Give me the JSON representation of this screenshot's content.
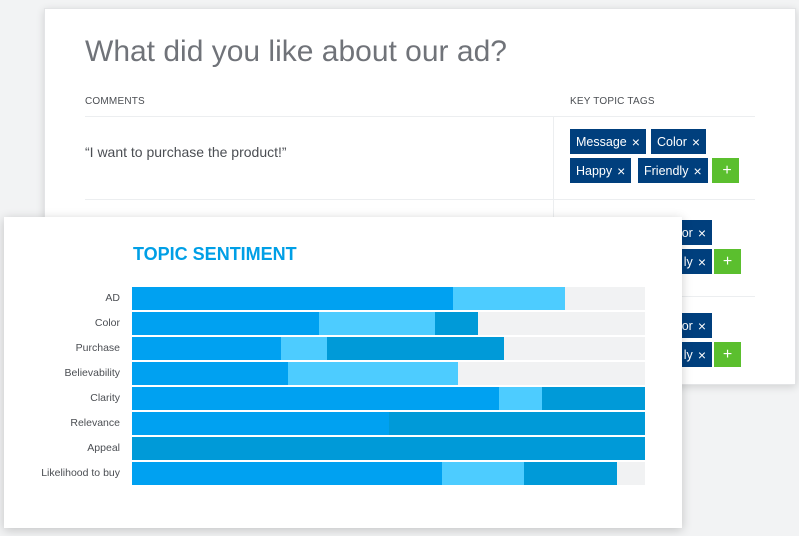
{
  "survey": {
    "question": "What did you like about our ad?",
    "comments_header": "COMMENTS",
    "tags_header": "KEY TOPIC TAGS",
    "comment": "“I want to purchase the product!”",
    "remove_glyph": "×",
    "add_glyph": "+",
    "tags_row1": [
      "Message",
      "Color",
      "Happy",
      "Friendly"
    ],
    "tags_row2": [
      "or",
      "ly"
    ],
    "tags_row3": [
      "or",
      "ly"
    ]
  },
  "sentiment": {
    "title": "TOPIC SENTIMENT",
    "colors": [
      "#00a1f1",
      "#4dccff",
      "#009ad8",
      "#f1f2f3"
    ],
    "rows": [
      {
        "label": "AD",
        "segments": [
          62.5,
          22,
          0,
          15.5
        ]
      },
      {
        "label": "Color",
        "segments": [
          36.5,
          22.5,
          8.5,
          32.5
        ]
      },
      {
        "label": "Purchase",
        "segments": [
          29,
          9,
          34.5,
          27.5
        ]
      },
      {
        "label": "Believability",
        "segments": [
          30.5,
          33,
          0,
          36.5
        ]
      },
      {
        "label": "Clarity",
        "segments": [
          71.5,
          8.5,
          20,
          0
        ]
      },
      {
        "label": "Relevance",
        "segments": [
          50,
          0,
          50,
          0
        ]
      },
      {
        "label": "Appeal",
        "segments": [
          0,
          0,
          100,
          0
        ]
      },
      {
        "label": "Likelihood to buy",
        "segments": [
          60.5,
          16,
          18,
          5.5
        ]
      }
    ]
  }
}
